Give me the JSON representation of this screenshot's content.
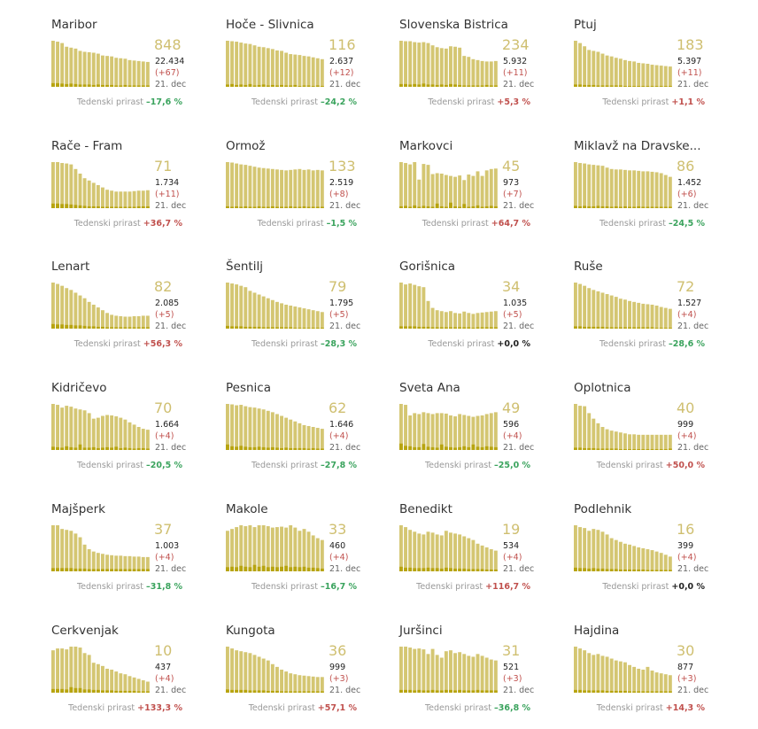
{
  "colors": {
    "bar": "#d4c672",
    "bar_dark": "#b7a40f",
    "active": "#cfbf70",
    "pos": "#c0504d",
    "neg": "#3aa35d",
    "zero": "#222222"
  },
  "chart_data": [
    {
      "type": "bar",
      "title": "Maribor",
      "active": "848",
      "total": "22.434",
      "delta": "(+67)",
      "date": "21. dec",
      "growth_label": "Tedenski prirast",
      "growth": "–17,6 %",
      "growth_sign": "neg",
      "values": [
        100,
        98,
        95,
        87,
        85,
        83,
        78,
        76,
        75,
        74,
        72,
        68,
        67,
        66,
        63,
        62,
        61,
        58,
        57,
        56,
        55,
        54
      ],
      "daily": [
        8,
        8,
        7,
        6,
        7,
        6,
        5,
        5,
        5,
        4,
        5,
        4,
        4,
        4,
        3,
        3,
        4,
        3,
        3,
        3,
        3,
        3
      ]
    },
    {
      "type": "bar",
      "title": "Hoče - Slivnica",
      "active": "116",
      "total": "2.637",
      "delta": "(+12)",
      "date": "21. dec",
      "growth_label": "Tedenski prirast",
      "growth": "–24,2 %",
      "growth_sign": "neg",
      "values": [
        100,
        99,
        98,
        96,
        94,
        93,
        90,
        87,
        86,
        84,
        82,
        79,
        78,
        74,
        71,
        70,
        69,
        67,
        66,
        64,
        62,
        60
      ],
      "daily": [
        5,
        6,
        4,
        5,
        4,
        6,
        3,
        4,
        5,
        3,
        4,
        3,
        4,
        3,
        3,
        4,
        2,
        3,
        3,
        2,
        3,
        2
      ]
    },
    {
      "type": "bar",
      "title": "Slovenska Bistrica",
      "active": "234",
      "total": "5.932",
      "delta": "(+11)",
      "date": "21. dec",
      "growth_label": "Tedenski prirast",
      "growth": "+5,3 %",
      "growth_sign": "pos",
      "values": [
        100,
        99,
        99,
        97,
        96,
        97,
        95,
        90,
        86,
        84,
        83,
        88,
        87,
        85,
        67,
        65,
        60,
        58,
        56,
        55,
        55,
        56
      ],
      "daily": [
        6,
        6,
        5,
        6,
        5,
        7,
        5,
        5,
        4,
        5,
        4,
        6,
        5,
        4,
        3,
        3,
        3,
        3,
        3,
        4,
        3,
        3
      ]
    },
    {
      "type": "bar",
      "title": "Ptuj",
      "active": "183",
      "total": "5.397",
      "delta": "(+11)",
      "date": "21. dec",
      "growth_label": "Tedenski prirast",
      "growth": "+1,1 %",
      "growth_sign": "pos",
      "values": [
        100,
        95,
        88,
        80,
        78,
        76,
        72,
        68,
        66,
        63,
        61,
        58,
        56,
        55,
        52,
        51,
        50,
        48,
        47,
        46,
        45,
        44
      ],
      "daily": [
        5,
        5,
        4,
        4,
        4,
        3,
        3,
        3,
        3,
        3,
        3,
        2,
        2,
        2,
        2,
        2,
        2,
        2,
        2,
        2,
        2,
        2
      ]
    },
    {
      "type": "bar",
      "title": "Rače - Fram",
      "active": "71",
      "total": "1.734",
      "delta": "(+11)",
      "date": "21. dec",
      "growth_label": "Tedenski prirast",
      "growth": "+36,7 %",
      "growth_sign": "pos",
      "values": [
        100,
        100,
        98,
        97,
        95,
        85,
        75,
        65,
        60,
        55,
        50,
        45,
        40,
        38,
        36,
        36,
        36,
        36,
        37,
        38,
        38,
        39
      ],
      "daily": [
        10,
        10,
        9,
        9,
        8,
        7,
        6,
        5,
        4,
        4,
        4,
        3,
        3,
        3,
        3,
        3,
        3,
        3,
        3,
        4,
        4,
        4
      ]
    },
    {
      "type": "bar",
      "title": "Ormož",
      "active": "133",
      "total": "2.519",
      "delta": "(+8)",
      "date": "21. dec",
      "growth_label": "Tedenski prirast",
      "growth": "–1,5 %",
      "growth_sign": "neg",
      "values": [
        100,
        99,
        97,
        95,
        94,
        92,
        90,
        88,
        87,
        86,
        85,
        84,
        83,
        82,
        83,
        84,
        85,
        83,
        84,
        82,
        83,
        82
      ],
      "daily": [
        4,
        3,
        4,
        3,
        4,
        3,
        3,
        4,
        3,
        3,
        4,
        3,
        3,
        3,
        4,
        3,
        3,
        4,
        3,
        3,
        3,
        3
      ]
    },
    {
      "type": "bar",
      "title": "Markovci",
      "active": "45",
      "total": "973",
      "delta": "(+7)",
      "date": "21. dec",
      "growth_label": "Tedenski prirast",
      "growth": "+64,7 %",
      "growth_sign": "pos",
      "values": [
        100,
        98,
        95,
        100,
        62,
        96,
        94,
        74,
        76,
        75,
        72,
        70,
        68,
        71,
        61,
        73,
        70,
        80,
        70,
        82,
        85,
        86
      ],
      "daily": [
        4,
        5,
        3,
        6,
        3,
        5,
        4,
        3,
        10,
        4,
        3,
        12,
        4,
        3,
        9,
        3,
        4,
        6,
        3,
        4,
        5,
        4
      ]
    },
    {
      "type": "bar",
      "title": "Miklavž na Dravske...",
      "active": "86",
      "total": "1.452",
      "delta": "(+6)",
      "date": "21. dec",
      "growth_label": "Tedenski prirast",
      "growth": "–24,5 %",
      "growth_sign": "neg",
      "values": [
        100,
        98,
        97,
        95,
        94,
        93,
        92,
        88,
        85,
        84,
        84,
        83,
        82,
        82,
        81,
        80,
        80,
        79,
        78,
        76,
        72,
        68
      ],
      "daily": [
        5,
        4,
        5,
        4,
        4,
        5,
        4,
        4,
        3,
        4,
        3,
        4,
        3,
        3,
        4,
        3,
        3,
        3,
        3,
        3,
        3,
        3
      ]
    },
    {
      "type": "bar",
      "title": "Lenart",
      "active": "82",
      "total": "2.085",
      "delta": "(+5)",
      "date": "21. dec",
      "growth_label": "Tedenski prirast",
      "growth": "+56,3 %",
      "growth_sign": "pos",
      "values": [
        100,
        97,
        93,
        88,
        84,
        78,
        72,
        66,
        58,
        52,
        46,
        40,
        34,
        30,
        28,
        27,
        26,
        26,
        27,
        27,
        28,
        28
      ],
      "daily": [
        10,
        9,
        9,
        8,
        8,
        7,
        7,
        6,
        5,
        5,
        4,
        4,
        3,
        3,
        3,
        3,
        3,
        3,
        3,
        3,
        3,
        3
      ]
    },
    {
      "type": "bar",
      "title": "Šentilj",
      "active": "79",
      "total": "1.795",
      "delta": "(+5)",
      "date": "21. dec",
      "growth_label": "Tedenski prirast",
      "growth": "–28,3 %",
      "growth_sign": "neg",
      "values": [
        100,
        98,
        96,
        93,
        90,
        82,
        78,
        74,
        70,
        66,
        62,
        58,
        55,
        52,
        50,
        48,
        46,
        44,
        42,
        40,
        38,
        36
      ],
      "daily": [
        6,
        5,
        5,
        5,
        4,
        4,
        4,
        4,
        3,
        3,
        3,
        3,
        3,
        3,
        3,
        2,
        2,
        2,
        2,
        2,
        2,
        2
      ]
    },
    {
      "type": "bar",
      "title": "Gorišnica",
      "active": "34",
      "total": "1.035",
      "delta": "(+5)",
      "date": "21. dec",
      "growth_label": "Tedenski prirast",
      "growth": "+0,0 %",
      "growth_sign": "zero",
      "values": [
        100,
        96,
        98,
        95,
        92,
        90,
        60,
        45,
        40,
        38,
        36,
        38,
        34,
        33,
        37,
        34,
        32,
        34,
        35,
        36,
        37,
        38
      ],
      "daily": [
        5,
        5,
        5,
        5,
        4,
        4,
        4,
        3,
        3,
        3,
        3,
        3,
        3,
        3,
        3,
        3,
        2,
        3,
        3,
        3,
        3,
        3
      ]
    },
    {
      "type": "bar",
      "title": "Ruše",
      "active": "72",
      "total": "1.527",
      "delta": "(+4)",
      "date": "21. dec",
      "growth_label": "Tedenski prirast",
      "growth": "–28,6 %",
      "growth_sign": "neg",
      "values": [
        100,
        97,
        93,
        88,
        84,
        81,
        78,
        75,
        72,
        69,
        65,
        63,
        60,
        58,
        56,
        54,
        53,
        52,
        50,
        47,
        45,
        43
      ],
      "daily": [
        5,
        5,
        4,
        4,
        4,
        4,
        4,
        3,
        3,
        3,
        3,
        3,
        3,
        3,
        3,
        3,
        3,
        3,
        2,
        2,
        2,
        2
      ]
    },
    {
      "type": "bar",
      "title": "Kidričevo",
      "active": "70",
      "total": "1.664",
      "delta": "(+4)",
      "date": "21. dec",
      "growth_label": "Tedenski prirast",
      "growth": "–20,5 %",
      "growth_sign": "neg",
      "values": [
        100,
        98,
        92,
        96,
        94,
        90,
        88,
        86,
        80,
        68,
        70,
        74,
        76,
        75,
        73,
        70,
        66,
        60,
        55,
        50,
        46,
        44
      ],
      "daily": [
        7,
        6,
        5,
        8,
        6,
        5,
        12,
        5,
        5,
        6,
        4,
        5,
        6,
        5,
        7,
        4,
        5,
        4,
        3,
        4,
        4,
        3
      ]
    },
    {
      "type": "bar",
      "title": "Pesnica",
      "active": "62",
      "total": "1.646",
      "delta": "(+4)",
      "date": "21. dec",
      "growth_label": "Tedenski prirast",
      "growth": "–27,8 %",
      "growth_sign": "neg",
      "values": [
        100,
        99,
        97,
        98,
        95,
        93,
        92,
        90,
        88,
        85,
        82,
        78,
        74,
        70,
        66,
        62,
        58,
        54,
        52,
        50,
        48,
        46
      ],
      "daily": [
        12,
        8,
        7,
        9,
        7,
        6,
        6,
        7,
        6,
        5,
        6,
        5,
        4,
        5,
        4,
        4,
        4,
        4,
        3,
        4,
        3,
        3
      ]
    },
    {
      "type": "bar",
      "title": "Sveta Ana",
      "active": "49",
      "total": "596",
      "delta": "(+4)",
      "date": "21. dec",
      "growth_label": "Tedenski prirast",
      "growth": "–25,0 %",
      "growth_sign": "neg",
      "values": [
        100,
        98,
        75,
        80,
        78,
        82,
        80,
        78,
        80,
        80,
        79,
        75,
        73,
        78,
        76,
        74,
        72,
        74,
        75,
        78,
        80,
        82
      ],
      "daily": [
        14,
        9,
        8,
        6,
        6,
        13,
        7,
        6,
        5,
        12,
        7,
        6,
        5,
        6,
        8,
        6,
        12,
        7,
        6,
        8,
        7,
        6
      ]
    },
    {
      "type": "bar",
      "title": "Oplotnica",
      "active": "40",
      "total": "999",
      "delta": "(+4)",
      "date": "21. dec",
      "growth_label": "Tedenski prirast",
      "growth": "+50,0 %",
      "growth_sign": "pos",
      "values": [
        100,
        96,
        95,
        80,
        68,
        58,
        50,
        45,
        42,
        40,
        38,
        36,
        34,
        34,
        33,
        33,
        33,
        33,
        33,
        33,
        33,
        33
      ],
      "daily": [
        5,
        5,
        4,
        4,
        4,
        3,
        3,
        3,
        3,
        3,
        2,
        2,
        2,
        2,
        2,
        2,
        2,
        2,
        2,
        2,
        2,
        3
      ]
    },
    {
      "type": "bar",
      "title": "Majšperk",
      "active": "37",
      "total": "1.003",
      "delta": "(+4)",
      "date": "21. dec",
      "growth_label": "Tedenski prirast",
      "growth": "–31,8 %",
      "growth_sign": "neg",
      "values": [
        100,
        100,
        92,
        90,
        88,
        82,
        74,
        58,
        48,
        43,
        40,
        38,
        36,
        35,
        34,
        34,
        33,
        33,
        32,
        32,
        31,
        31
      ],
      "daily": [
        7,
        7,
        7,
        7,
        7,
        6,
        6,
        6,
        5,
        5,
        5,
        5,
        5,
        5,
        5,
        5,
        5,
        5,
        5,
        5,
        5,
        5
      ]
    },
    {
      "type": "bar",
      "title": "Makole",
      "active": "33",
      "total": "460",
      "delta": "(+4)",
      "date": "21. dec",
      "growth_label": "Tedenski prirast",
      "growth": "–16,7 %",
      "growth_sign": "neg",
      "values": [
        88,
        92,
        96,
        100,
        98,
        100,
        96,
        100,
        100,
        98,
        95,
        96,
        97,
        95,
        100,
        95,
        88,
        92,
        86,
        78,
        72,
        68
      ],
      "daily": [
        9,
        10,
        9,
        12,
        10,
        9,
        14,
        10,
        12,
        9,
        10,
        9,
        10,
        12,
        9,
        10,
        9,
        10,
        8,
        8,
        7,
        6
      ]
    },
    {
      "type": "bar",
      "title": "Benedikt",
      "active": "19",
      "total": "534",
      "delta": "(+4)",
      "date": "21. dec",
      "growth_label": "Tedenski prirast",
      "growth": "+116,7 %",
      "growth_sign": "pos",
      "values": [
        100,
        96,
        90,
        86,
        82,
        80,
        86,
        84,
        80,
        78,
        88,
        84,
        82,
        80,
        76,
        72,
        68,
        60,
        56,
        52,
        48,
        45
      ],
      "daily": [
        10,
        8,
        8,
        7,
        7,
        7,
        8,
        7,
        7,
        6,
        8,
        7,
        6,
        6,
        6,
        5,
        5,
        5,
        5,
        4,
        4,
        4
      ]
    },
    {
      "type": "bar",
      "title": "Podlehnik",
      "active": "16",
      "total": "399",
      "delta": "(+4)",
      "date": "21. dec",
      "growth_label": "Tedenski prirast",
      "growth": "+0,0 %",
      "growth_sign": "zero",
      "values": [
        100,
        96,
        94,
        88,
        92,
        90,
        86,
        80,
        72,
        68,
        64,
        60,
        58,
        55,
        52,
        50,
        48,
        46,
        43,
        40,
        36,
        32
      ],
      "daily": [
        8,
        7,
        7,
        6,
        7,
        6,
        6,
        5,
        5,
        5,
        4,
        4,
        4,
        4,
        4,
        4,
        3,
        3,
        3,
        3,
        3,
        3
      ]
    },
    {
      "type": "bar",
      "title": "Cerkvenjak",
      "active": "10",
      "total": "437",
      "delta": "(+4)",
      "date": "21. dec",
      "growth_label": "Tedenski prirast",
      "growth": "+133,3 %",
      "growth_sign": "pos",
      "values": [
        92,
        96,
        96,
        94,
        100,
        100,
        98,
        86,
        82,
        65,
        62,
        58,
        52,
        50,
        46,
        42,
        40,
        36,
        33,
        30,
        27,
        24
      ],
      "daily": [
        8,
        8,
        8,
        7,
        12,
        10,
        10,
        7,
        7,
        6,
        6,
        5,
        5,
        5,
        4,
        4,
        4,
        4,
        4,
        3,
        3,
        3
      ]
    },
    {
      "type": "bar",
      "title": "Kungota",
      "active": "36",
      "total": "999",
      "delta": "(+3)",
      "date": "21. dec",
      "growth_label": "Tedenski prirast",
      "growth": "+57,1 %",
      "growth_sign": "pos",
      "values": [
        100,
        96,
        92,
        90,
        88,
        86,
        82,
        78,
        74,
        70,
        62,
        56,
        50,
        46,
        42,
        40,
        38,
        37,
        36,
        35,
        34,
        34
      ],
      "daily": [
        7,
        6,
        6,
        6,
        6,
        5,
        5,
        5,
        5,
        4,
        4,
        4,
        3,
        3,
        3,
        3,
        3,
        3,
        3,
        3,
        3,
        3
      ]
    },
    {
      "type": "bar",
      "title": "Juršinci",
      "active": "31",
      "total": "521",
      "delta": "(+3)",
      "date": "21. dec",
      "growth_label": "Tedenski prirast",
      "growth": "–36,8 %",
      "growth_sign": "neg",
      "values": [
        100,
        100,
        98,
        95,
        96,
        94,
        84,
        95,
        82,
        76,
        90,
        92,
        86,
        88,
        84,
        80,
        78,
        84,
        80,
        76,
        72,
        70
      ],
      "daily": [
        6,
        6,
        6,
        5,
        6,
        5,
        5,
        6,
        5,
        5,
        6,
        6,
        5,
        6,
        5,
        5,
        5,
        6,
        5,
        5,
        5,
        5
      ]
    },
    {
      "type": "bar",
      "title": "Hajdina",
      "active": "30",
      "total": "877",
      "delta": "(+3)",
      "date": "21. dec",
      "growth_label": "Tedenski prirast",
      "growth": "+14,3 %",
      "growth_sign": "pos",
      "values": [
        100,
        96,
        92,
        86,
        82,
        84,
        80,
        78,
        74,
        70,
        68,
        66,
        60,
        56,
        52,
        50,
        56,
        48,
        44,
        42,
        40,
        38
      ],
      "daily": [
        6,
        6,
        5,
        5,
        5,
        5,
        5,
        4,
        4,
        4,
        4,
        4,
        3,
        3,
        3,
        3,
        3,
        3,
        3,
        3,
        3,
        3
      ]
    }
  ]
}
